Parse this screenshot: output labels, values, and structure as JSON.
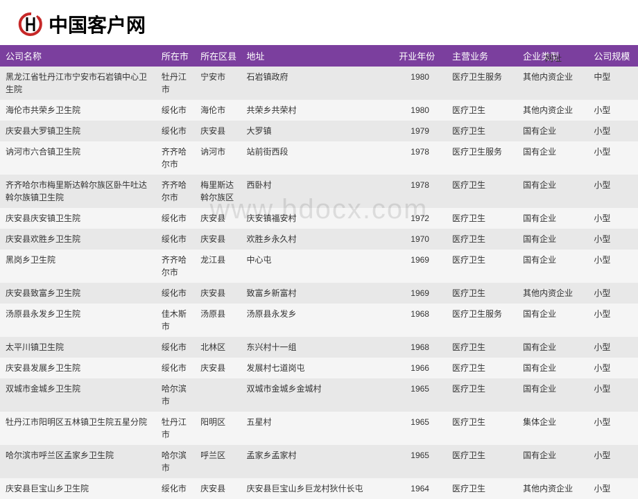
{
  "logo": {
    "text": "中国客户网"
  },
  "urlLabel": "网址",
  "watermark": "www.bdocx.com",
  "columns": [
    "公司名称",
    "所在市",
    "所在区县",
    "地址",
    "开业年份",
    "主营业务",
    "企业类型",
    "公司规模"
  ],
  "rows": [
    {
      "name": "黑龙江省牡丹江市宁安市石岩镇中心卫生院",
      "city": "牡丹江市",
      "district": "宁安市",
      "address": "石岩镇政府",
      "year": "1980",
      "business": "医疗卫生服务",
      "type": "其他内资企业",
      "scale": "中型"
    },
    {
      "name": "海伦市共荣乡卫生院",
      "city": "绥化市",
      "district": "海伦市",
      "address": "共荣乡共荣村",
      "year": "1980",
      "business": "医疗卫生",
      "type": "其他内资企业",
      "scale": "小型"
    },
    {
      "name": "庆安县大罗镇卫生院",
      "city": "绥化市",
      "district": "庆安县",
      "address": "大罗镇",
      "year": "1979",
      "business": "医疗卫生",
      "type": "国有企业",
      "scale": "小型"
    },
    {
      "name": "讷河市六合镇卫生院",
      "city": "齐齐哈尔市",
      "district": "讷河市",
      "address": "站前街西段",
      "year": "1978",
      "business": "医疗卫生服务",
      "type": "国有企业",
      "scale": "小型"
    },
    {
      "name": "齐齐哈尔市梅里斯达斡尔族区卧牛吐达斡尔族镇卫生院",
      "city": "齐齐哈尔市",
      "district": "梅里斯达斡尔族区",
      "address": "西卧村",
      "year": "1978",
      "business": "医疗卫生",
      "type": "国有企业",
      "scale": "小型"
    },
    {
      "name": "庆安县庆安镇卫生院",
      "city": "绥化市",
      "district": "庆安县",
      "address": "庆安镇福安村",
      "year": "1972",
      "business": "医疗卫生",
      "type": "国有企业",
      "scale": "小型"
    },
    {
      "name": "庆安县欢胜乡卫生院",
      "city": "绥化市",
      "district": "庆安县",
      "address": "欢胜乡永久村",
      "year": "1970",
      "business": "医疗卫生",
      "type": "国有企业",
      "scale": "小型"
    },
    {
      "name": "黑岗乡卫生院",
      "city": "齐齐哈尔市",
      "district": "龙江县",
      "address": "中心屯",
      "year": "1969",
      "business": "医疗卫生",
      "type": "国有企业",
      "scale": "小型"
    },
    {
      "name": "庆安县致富乡卫生院",
      "city": "绥化市",
      "district": "庆安县",
      "address": "致富乡新富村",
      "year": "1969",
      "business": "医疗卫生",
      "type": "其他内资企业",
      "scale": "小型"
    },
    {
      "name": "汤原县永发乡卫生院",
      "city": "佳木斯市",
      "district": "汤原县",
      "address": "汤原县永发乡",
      "year": "1968",
      "business": "医疗卫生服务",
      "type": "国有企业",
      "scale": "小型"
    },
    {
      "name": "太平川镇卫生院",
      "city": "绥化市",
      "district": "北林区",
      "address": "东兴村十一组",
      "year": "1968",
      "business": "医疗卫生",
      "type": "国有企业",
      "scale": "小型"
    },
    {
      "name": "庆安县发展乡卫生院",
      "city": "绥化市",
      "district": "庆安县",
      "address": "发展村七道岗屯",
      "year": "1966",
      "business": "医疗卫生",
      "type": "国有企业",
      "scale": "小型"
    },
    {
      "name": "双城市金城乡卫生院",
      "city": "哈尔滨市",
      "district": "",
      "address": "双城市金城乡金城村",
      "year": "1965",
      "business": "医疗卫生",
      "type": "国有企业",
      "scale": "小型"
    },
    {
      "name": "牡丹江市阳明区五林镇卫生院五星分院",
      "city": "牡丹江市",
      "district": "阳明区",
      "address": "五星村",
      "year": "1965",
      "business": "医疗卫生",
      "type": "集体企业",
      "scale": "小型"
    },
    {
      "name": "哈尔滨市呼兰区孟家乡卫生院",
      "city": "哈尔滨市",
      "district": "呼兰区",
      "address": "孟家乡孟家村",
      "year": "1965",
      "business": "医疗卫生",
      "type": "国有企业",
      "scale": "小型"
    },
    {
      "name": "庆安县巨宝山乡卫生院",
      "city": "绥化市",
      "district": "庆安县",
      "address": "庆安县巨宝山乡巨龙村狄什长屯",
      "year": "1964",
      "business": "医疗卫生",
      "type": "其他内资企业",
      "scale": "小型"
    }
  ]
}
